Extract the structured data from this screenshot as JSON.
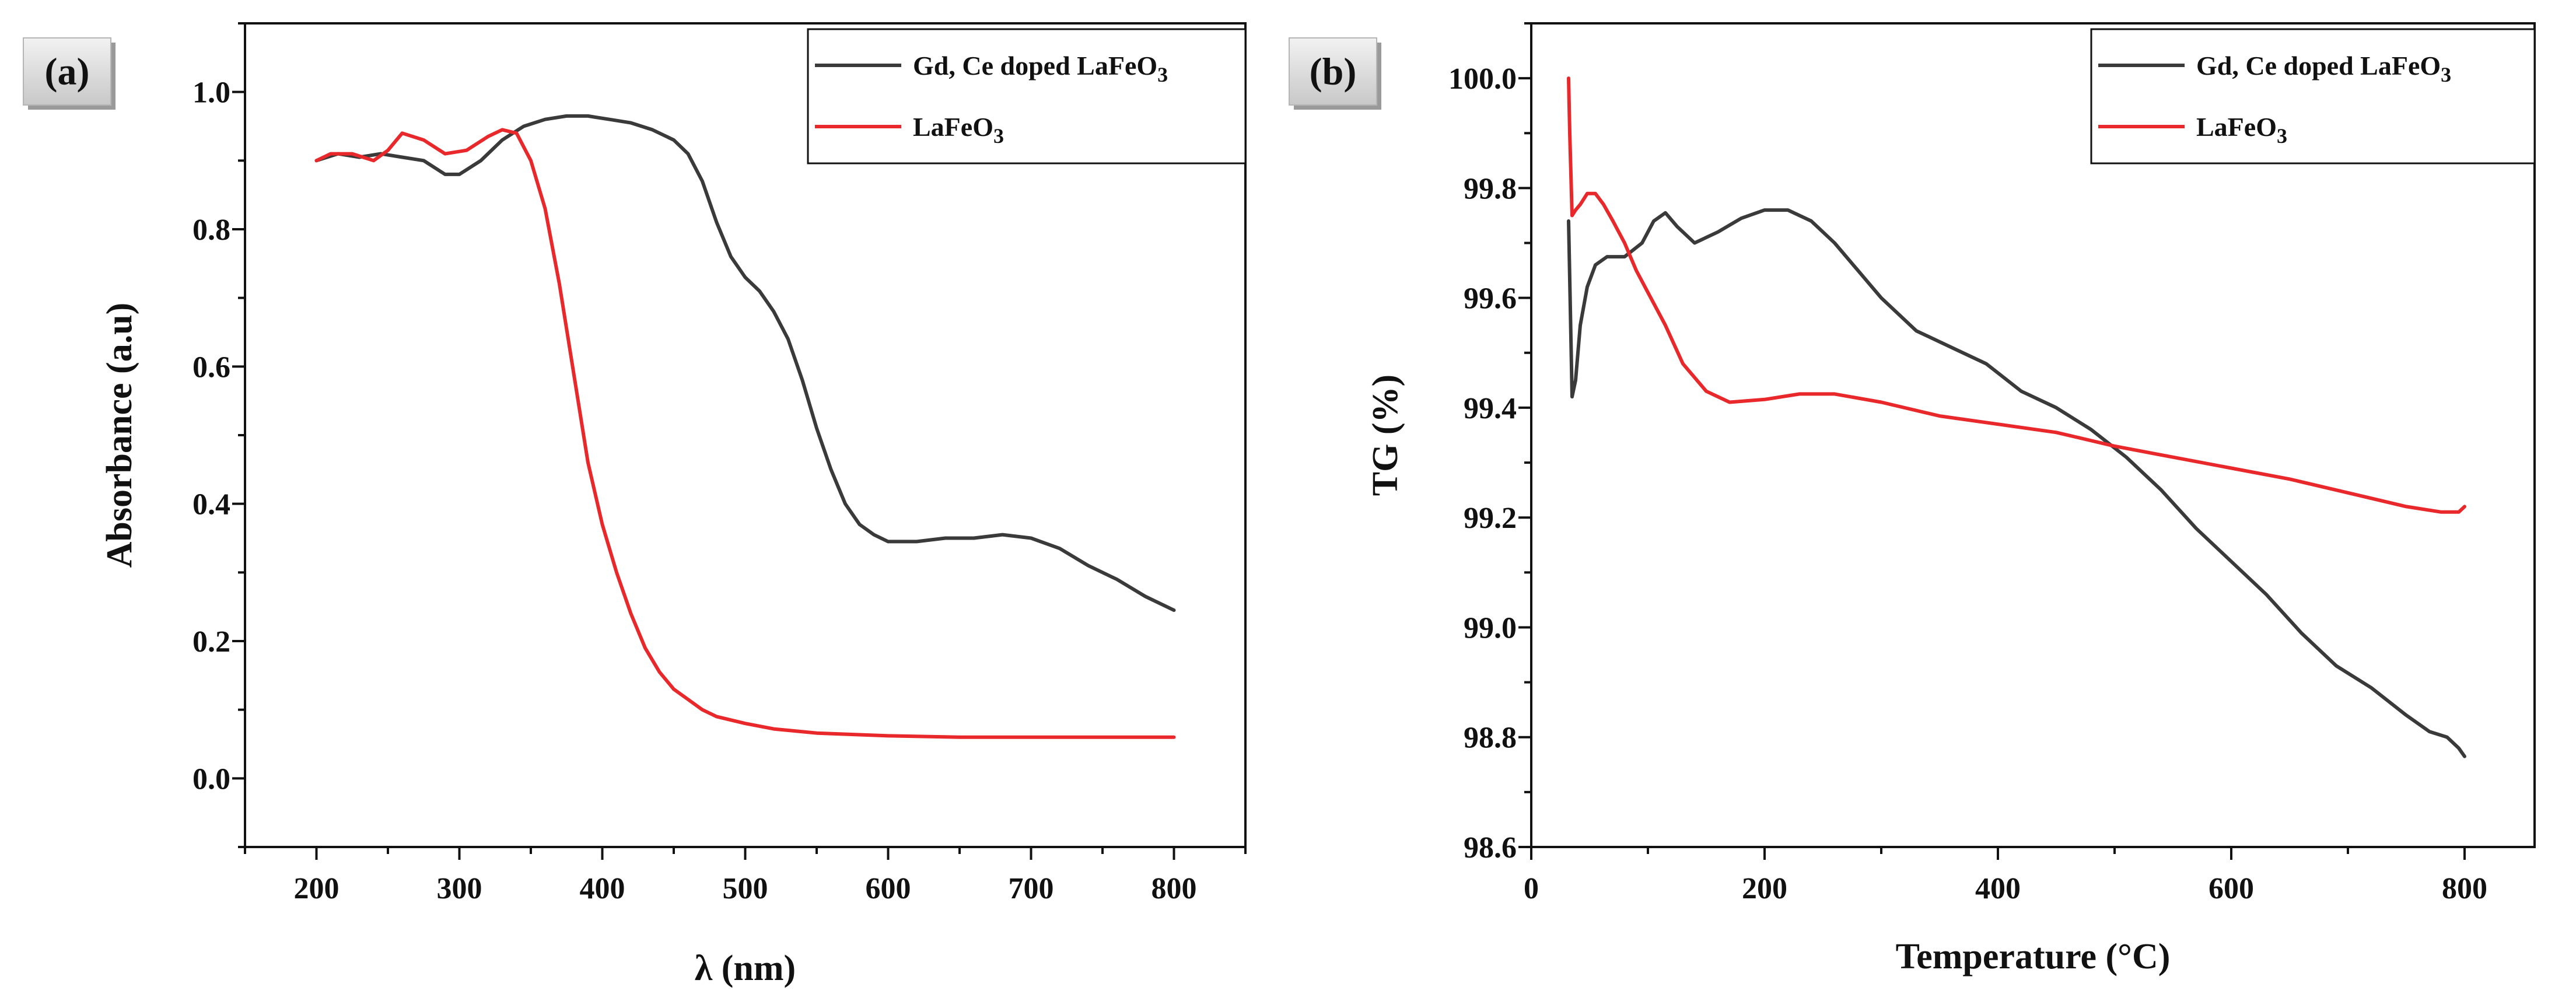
{
  "chart_data": [
    {
      "panel": "(a)",
      "type": "line",
      "xlabel": "λ (nm)",
      "ylabel": "Absorbance (a.u)",
      "xlim": [
        150,
        850
      ],
      "ylim": [
        -0.1,
        1.1
      ],
      "xticks": [
        200,
        300,
        400,
        500,
        600,
        700,
        800
      ],
      "yticks": [
        0.0,
        0.2,
        0.4,
        0.6,
        0.8,
        1.0
      ],
      "ytick_labels": [
        "0.0",
        "0.2",
        "0.4",
        "0.6",
        "0.8",
        "1.0"
      ],
      "legend_position": "top-right",
      "series": [
        {
          "name_main": "Gd, Ce doped LaFeO",
          "name_sub": "3",
          "color": "#3a3a3a",
          "x": [
            200,
            215,
            230,
            245,
            260,
            275,
            290,
            300,
            315,
            330,
            345,
            360,
            375,
            390,
            405,
            420,
            435,
            450,
            460,
            470,
            480,
            490,
            500,
            510,
            520,
            530,
            540,
            550,
            560,
            570,
            580,
            590,
            600,
            620,
            640,
            660,
            680,
            700,
            720,
            740,
            760,
            780,
            800
          ],
          "y": [
            0.9,
            0.91,
            0.905,
            0.91,
            0.905,
            0.9,
            0.88,
            0.88,
            0.9,
            0.93,
            0.95,
            0.96,
            0.965,
            0.965,
            0.96,
            0.955,
            0.945,
            0.93,
            0.91,
            0.87,
            0.81,
            0.76,
            0.73,
            0.71,
            0.68,
            0.64,
            0.58,
            0.51,
            0.45,
            0.4,
            0.37,
            0.355,
            0.345,
            0.345,
            0.35,
            0.35,
            0.355,
            0.35,
            0.335,
            0.31,
            0.29,
            0.265,
            0.245
          ]
        },
        {
          "name_main": "LaFeO",
          "name_sub": "3",
          "color": "#e8282a",
          "x": [
            200,
            210,
            225,
            240,
            250,
            260,
            275,
            290,
            305,
            320,
            330,
            340,
            350,
            360,
            370,
            380,
            390,
            400,
            410,
            420,
            430,
            440,
            450,
            460,
            470,
            480,
            490,
            500,
            520,
            550,
            600,
            650,
            700,
            750,
            800
          ],
          "y": [
            0.9,
            0.91,
            0.91,
            0.9,
            0.915,
            0.94,
            0.93,
            0.91,
            0.915,
            0.935,
            0.945,
            0.94,
            0.9,
            0.83,
            0.72,
            0.59,
            0.46,
            0.37,
            0.3,
            0.24,
            0.19,
            0.155,
            0.13,
            0.115,
            0.1,
            0.09,
            0.085,
            0.08,
            0.072,
            0.066,
            0.062,
            0.06,
            0.06,
            0.06,
            0.06
          ]
        }
      ]
    },
    {
      "panel": "(b)",
      "type": "line",
      "xlabel": "Temperature (°C)",
      "ylabel": "TG (%)",
      "xlim": [
        0,
        860
      ],
      "ylim": [
        98.6,
        100.1
      ],
      "xticks": [
        0,
        200,
        400,
        600,
        800
      ],
      "yticks": [
        98.6,
        98.8,
        99.0,
        99.2,
        99.4,
        99.6,
        99.8,
        100.0
      ],
      "ytick_labels": [
        "98.6",
        "98.8",
        "99.0",
        "99.2",
        "99.4",
        "99.6",
        "99.8",
        "100.0"
      ],
      "legend_position": "top-right",
      "series": [
        {
          "name_main": "Gd, Ce doped LaFeO",
          "name_sub": "3",
          "color": "#3a3a3a",
          "x": [
            32,
            35,
            38,
            42,
            48,
            55,
            65,
            80,
            95,
            105,
            115,
            125,
            140,
            160,
            180,
            200,
            220,
            240,
            260,
            280,
            300,
            330,
            360,
            390,
            420,
            450,
            480,
            510,
            540,
            570,
            600,
            630,
            660,
            690,
            720,
            750,
            770,
            785,
            795,
            800
          ],
          "y": [
            99.74,
            99.42,
            99.45,
            99.55,
            99.62,
            99.66,
            99.675,
            99.675,
            99.7,
            99.74,
            99.755,
            99.73,
            99.7,
            99.72,
            99.745,
            99.76,
            99.76,
            99.74,
            99.7,
            99.65,
            99.6,
            99.54,
            99.51,
            99.48,
            99.43,
            99.4,
            99.36,
            99.31,
            99.25,
            99.18,
            99.12,
            99.06,
            98.99,
            98.93,
            98.89,
            98.84,
            98.81,
            98.8,
            98.78,
            98.765
          ]
        },
        {
          "name_main": "LaFeO",
          "name_sub": "3",
          "color": "#e8282a",
          "x": [
            32,
            33,
            35,
            38,
            42,
            48,
            55,
            62,
            70,
            80,
            90,
            100,
            115,
            130,
            150,
            170,
            200,
            230,
            260,
            300,
            350,
            400,
            450,
            500,
            550,
            600,
            650,
            700,
            750,
            780,
            795,
            800
          ],
          "y": [
            100.0,
            99.9,
            99.75,
            99.76,
            99.77,
            99.79,
            99.79,
            99.77,
            99.74,
            99.7,
            99.65,
            99.61,
            99.55,
            99.48,
            99.43,
            99.41,
            99.415,
            99.425,
            99.425,
            99.41,
            99.385,
            99.37,
            99.355,
            99.33,
            99.31,
            99.29,
            99.27,
            99.245,
            99.22,
            99.21,
            99.21,
            99.22
          ]
        }
      ]
    }
  ]
}
